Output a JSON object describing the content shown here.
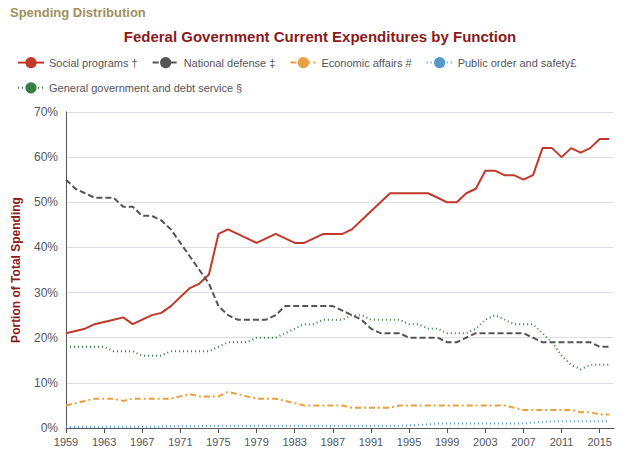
{
  "chart_data": {
    "type": "line",
    "title": "Federal Government Current Expenditures by Function",
    "annotations": [
      "Spending Distribution"
    ],
    "ylabel": "Portion of Total Spending",
    "x": [
      1959,
      1960,
      1961,
      1962,
      1963,
      1964,
      1965,
      1966,
      1967,
      1968,
      1969,
      1970,
      1971,
      1972,
      1973,
      1974,
      1975,
      1976,
      1977,
      1978,
      1979,
      1980,
      1981,
      1982,
      1983,
      1984,
      1985,
      1986,
      1987,
      1988,
      1989,
      1990,
      1991,
      1992,
      1993,
      1994,
      1995,
      1996,
      1997,
      1998,
      1999,
      2000,
      2001,
      2002,
      2003,
      2004,
      2005,
      2006,
      2007,
      2008,
      2009,
      2010,
      2011,
      2012,
      2013,
      2014,
      2015,
      2016
    ],
    "series": [
      {
        "name": "Social programs †",
        "color": "#c0392b",
        "line_style": "solid",
        "values": [
          21,
          21.5,
          22,
          23,
          23.5,
          24,
          24.5,
          23,
          24,
          25,
          25.5,
          27,
          29,
          31,
          32,
          34,
          43,
          44,
          43,
          42,
          41,
          42,
          43,
          42,
          41,
          41,
          42,
          43,
          43,
          43,
          44,
          46,
          48,
          50,
          52,
          52,
          52,
          52,
          52,
          51,
          50,
          50,
          52,
          53,
          57,
          57,
          56,
          56,
          55,
          56,
          62,
          62,
          60,
          62,
          61,
          62,
          64,
          64
        ]
      },
      {
        "name": "National defense ‡",
        "color": "#555555",
        "line_style": "dashed",
        "values": [
          55,
          53,
          52,
          51,
          51,
          51,
          49,
          49,
          47,
          47,
          46,
          44,
          41,
          38,
          35,
          32,
          27,
          25,
          24,
          24,
          24,
          24,
          25,
          27,
          27,
          27,
          27,
          27,
          27,
          26,
          25,
          24,
          22,
          21,
          21,
          21,
          20,
          20,
          20,
          20,
          19,
          19,
          20,
          21,
          21,
          21,
          21,
          21,
          21,
          20,
          19,
          19,
          19,
          19,
          19,
          19,
          18,
          18
        ]
      },
      {
        "name": "Economic affairs #",
        "color": "#e8a040",
        "line_style": "dashdot",
        "values": [
          5,
          5.5,
          6,
          6.5,
          6.5,
          6.5,
          6,
          6.5,
          6.5,
          6.5,
          6.5,
          6.5,
          7,
          7.5,
          7,
          7,
          7,
          8,
          7.5,
          7,
          6.5,
          6.5,
          6.5,
          6,
          5.5,
          5,
          5,
          5,
          5,
          5,
          4.5,
          4.5,
          4.5,
          4.5,
          4.5,
          5,
          5,
          5,
          5,
          5,
          5,
          5,
          5,
          5,
          5,
          5,
          5,
          4.5,
          4,
          4,
          4,
          4,
          4,
          4,
          3.5,
          3.5,
          3,
          3
        ]
      },
      {
        "name": "Public order and safety£",
        "color": "#5599cc",
        "line_style": "dotted",
        "values": [
          0.2,
          0.2,
          0.2,
          0.2,
          0.3,
          0.3,
          0.3,
          0.3,
          0.3,
          0.3,
          0.3,
          0.4,
          0.4,
          0.4,
          0.4,
          0.5,
          0.5,
          0.5,
          0.5,
          0.5,
          0.5,
          0.5,
          0.5,
          0.5,
          0.5,
          0.5,
          0.5,
          0.5,
          0.5,
          0.5,
          0.5,
          0.5,
          0.5,
          0.5,
          0.5,
          0.5,
          0.6,
          0.7,
          0.8,
          1.0,
          1.0,
          1.0,
          1.0,
          1.0,
          1.0,
          1.0,
          1.0,
          1.0,
          1.0,
          1.2,
          1.3,
          1.5,
          1.5,
          1.5,
          1.5,
          1.5,
          1.5,
          1.5
        ]
      },
      {
        "name": "General government and debt service §",
        "color": "#3a7d44",
        "line_style": "dotted",
        "values": [
          18,
          18,
          18,
          18,
          18,
          17,
          17,
          17,
          16,
          16,
          16,
          17,
          17,
          17,
          17,
          17,
          18,
          19,
          19,
          19,
          20,
          20,
          20,
          21,
          22,
          23,
          23,
          24,
          24,
          24,
          25,
          25,
          24,
          24,
          24,
          24,
          23,
          23,
          22,
          22,
          21,
          21,
          21,
          22,
          24,
          25,
          24,
          23,
          23,
          23,
          21,
          19,
          16,
          14,
          13,
          14,
          14,
          14
        ]
      }
    ],
    "xlim": [
      1959,
      2016.5
    ],
    "xticks": [
      1959,
      1963,
      1967,
      1971,
      1975,
      1979,
      1983,
      1987,
      1991,
      1995,
      1999,
      2003,
      2007,
      2011,
      2015
    ],
    "ylim": [
      0,
      70
    ],
    "yticks": [
      {
        "value": 0,
        "label": "0%"
      },
      {
        "value": 10,
        "label": "10%"
      },
      {
        "value": 20,
        "label": "20%"
      },
      {
        "value": 30,
        "label": "30%"
      },
      {
        "value": 40,
        "label": "40%"
      },
      {
        "value": 50,
        "label": "50%"
      },
      {
        "value": 60,
        "label": "60%"
      },
      {
        "value": 70,
        "label": "70%"
      }
    ],
    "grid": true,
    "legend": "upper left"
  }
}
